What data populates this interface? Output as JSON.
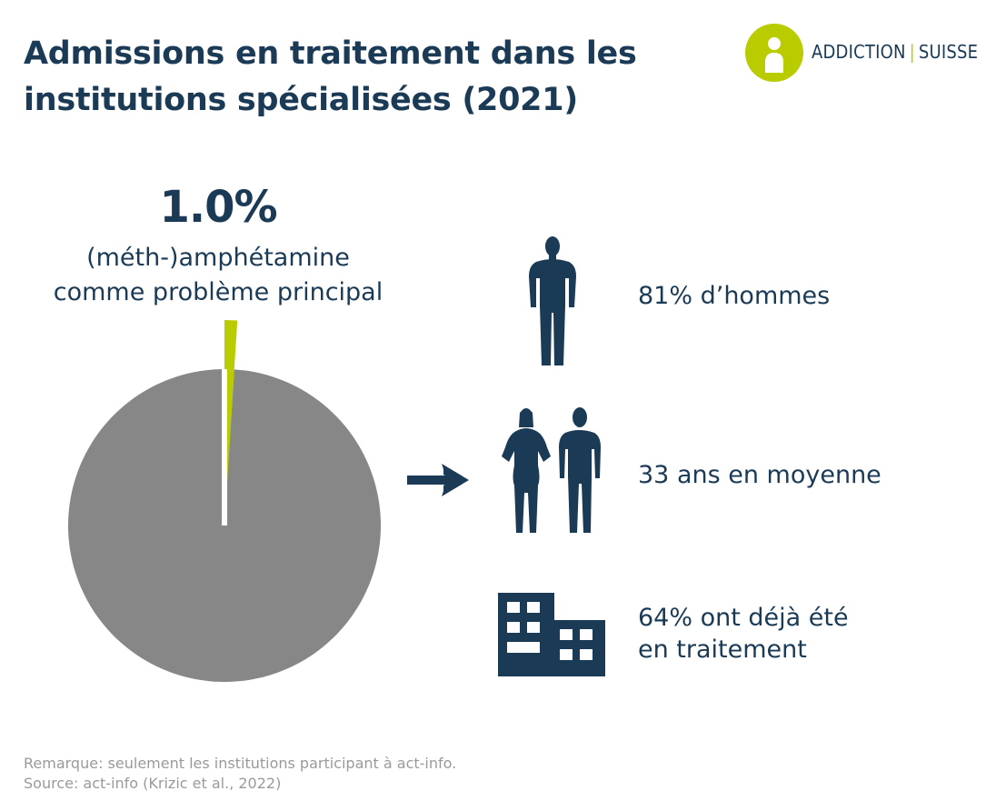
{
  "header": {
    "title_line1": "Admissions en traitement dans les",
    "title_line2": "institutions spécialisées (2021)",
    "logo_left": "ADDICTION",
    "logo_separator": "|",
    "logo_right": "SUISSE"
  },
  "colors": {
    "navy": "#1b3a55",
    "accent": "#b9cc00",
    "pie_rest": "#878787",
    "footer_text": "#9a9a9a"
  },
  "chart_data": {
    "type": "pie",
    "labels": [
      "(méth-)amphétamine comme problème principal",
      ""
    ],
    "values": [
      1.0,
      99.0
    ],
    "colors": [
      "#b9cc00",
      "#878787"
    ],
    "highlight_label": "1.0%",
    "annotation_line1": "(méth-)amphétamine",
    "annotation_line2": "comme problème principal"
  },
  "facts": [
    {
      "icon": "man-silhouette-icon",
      "text": "81% d’hommes"
    },
    {
      "icon": "woman-and-man-silhouette-icon",
      "text": "33 ans en moyenne"
    },
    {
      "icon": "building-icon",
      "text_line1": "64% ont déjà été",
      "text_line2": "en traitement"
    }
  ],
  "arrow_icon": "right-arrow-icon",
  "footer": {
    "note": "Remarque: seulement les institutions participant à act-info.",
    "source": "Source: act-info (Krizic et al., 2022)"
  }
}
